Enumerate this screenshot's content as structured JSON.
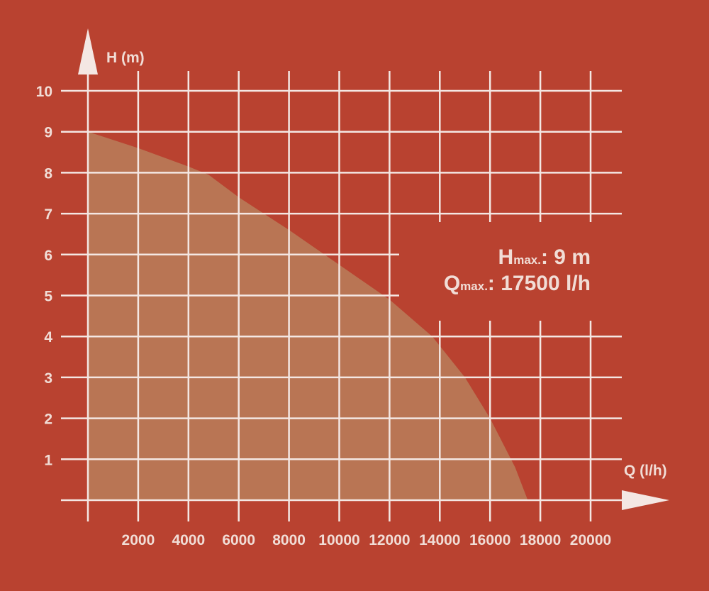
{
  "chart_data": {
    "type": "area",
    "xlabel": "Q (l/h)",
    "ylabel": "H (m)",
    "xlim": [
      0,
      21000
    ],
    "ylim": [
      0,
      10
    ],
    "x_ticks": [
      2000,
      4000,
      6000,
      8000,
      10000,
      12000,
      14000,
      16000,
      18000,
      20000
    ],
    "y_ticks": [
      1,
      2,
      3,
      4,
      5,
      6,
      7,
      8,
      9,
      10
    ],
    "grid": true,
    "series": [
      {
        "x": [
          0,
          2000,
          4000,
          4800,
          6000,
          8000,
          10000,
          12000,
          13700,
          15000,
          16000,
          17000,
          17500
        ],
        "y": [
          9,
          8.6,
          8.15,
          7.95,
          7.4,
          6.6,
          5.75,
          4.9,
          4.0,
          3.0,
          2.0,
          0.8,
          0
        ]
      }
    ],
    "annotations": {
      "hmax": {
        "symbol": "H",
        "sub": "max.",
        "value": ": 9 m"
      },
      "qmax": {
        "symbol": "Q",
        "sub": "max.",
        "value": ": 17500 l/h"
      }
    }
  },
  "colors": {
    "background": "#b94230",
    "fill": "#b87a58",
    "grid": "#f4e7e3",
    "text": "#f1ddd6"
  }
}
